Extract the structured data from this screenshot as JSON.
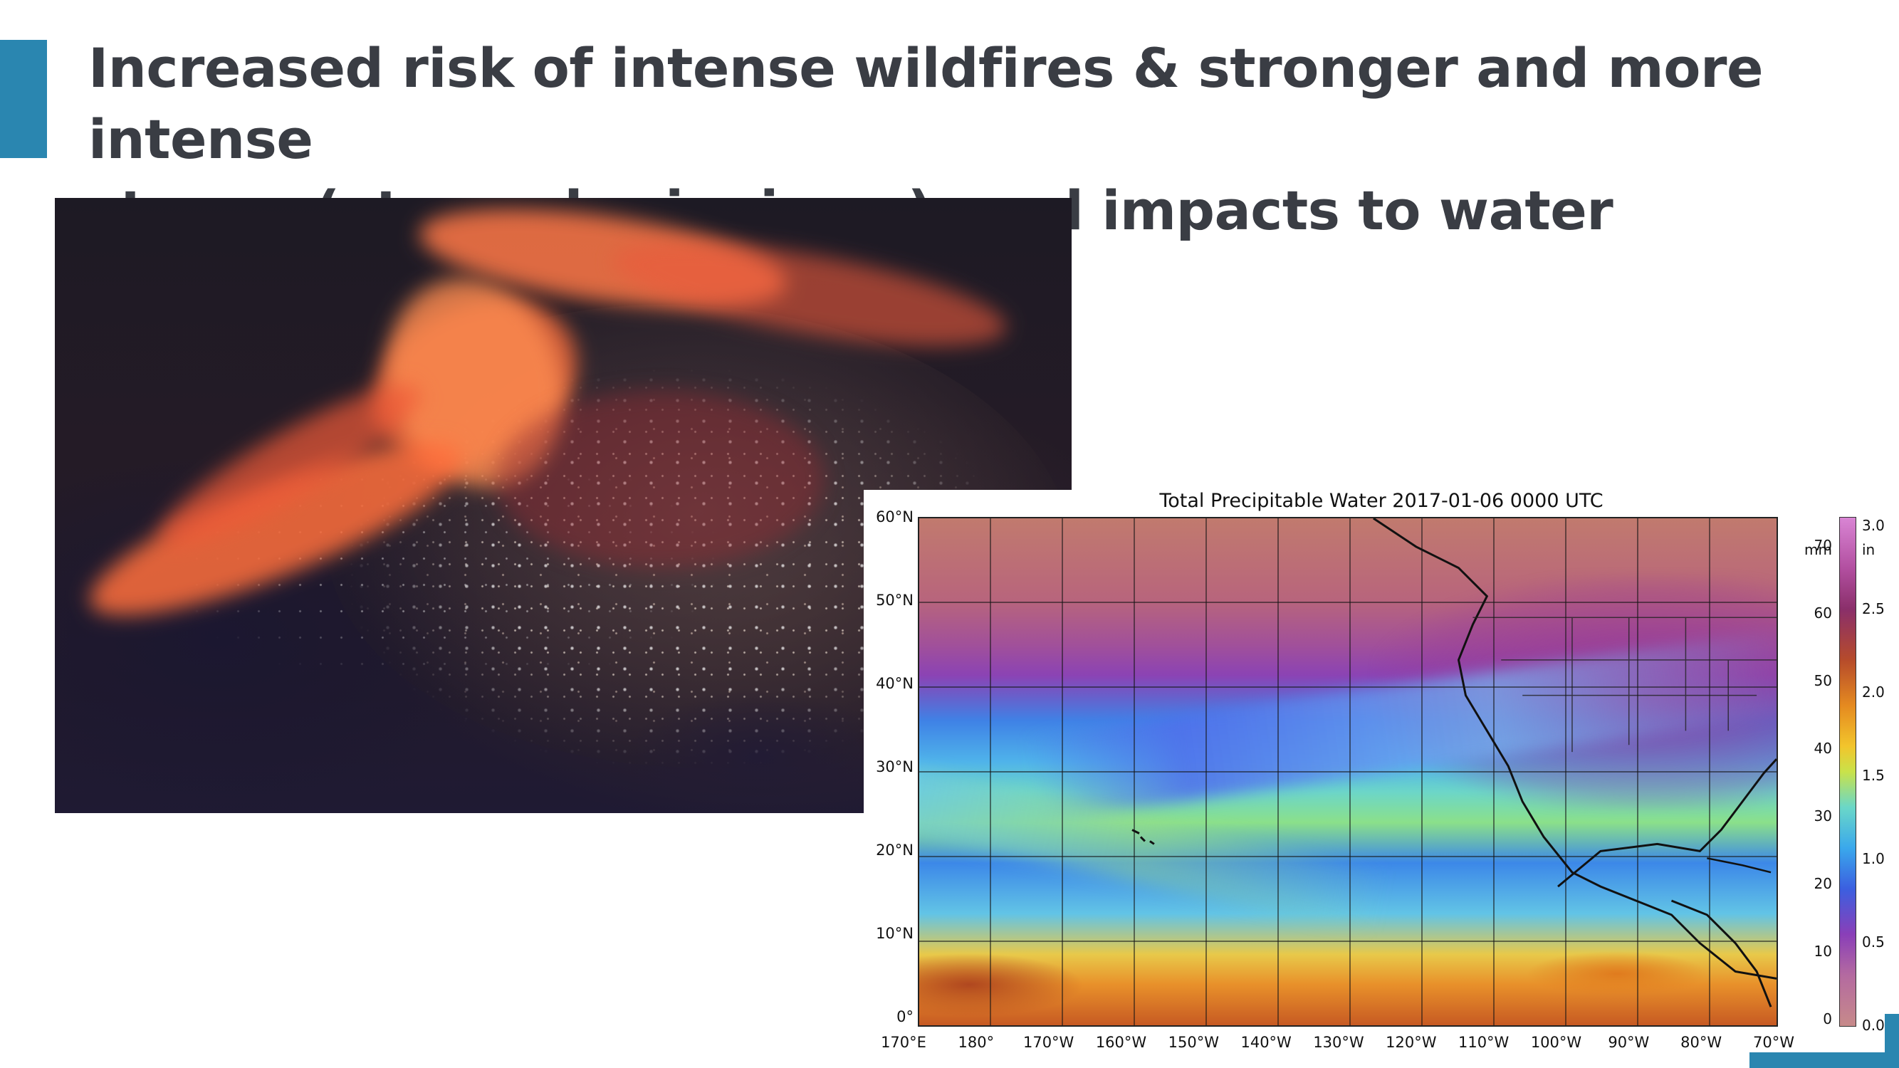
{
  "slide": {
    "title_line1": "Increased risk of intense wildfires & stronger and more intense",
    "title_line2": "storms (atmospheric rivers), and impacts to water quality",
    "accent_color": "#2a86b0"
  },
  "precip_map": {
    "title": "Total Precipitable Water  2017-01-06 0000 UTC",
    "lat_labels": [
      "60°N",
      "50°N",
      "40°N",
      "30°N",
      "20°N",
      "10°N",
      "0°"
    ],
    "lon_labels": [
      "170°E",
      "180°",
      "170°W",
      "160°W",
      "150°W",
      "140°W",
      "130°W",
      "120°W",
      "110°W",
      "100°W",
      "90°W",
      "80°W",
      "70°W"
    ],
    "colorbar_mm_labels": [
      "70",
      "60",
      "50",
      "40",
      "30",
      "20",
      "10",
      "0"
    ],
    "colorbar_mm_unit": "mm",
    "colorbar_in_labels": [
      "3.0",
      "2.5",
      "2.0",
      "1.5",
      "1.0",
      "0.5",
      "0.0"
    ],
    "colorbar_in_unit": "in"
  }
}
